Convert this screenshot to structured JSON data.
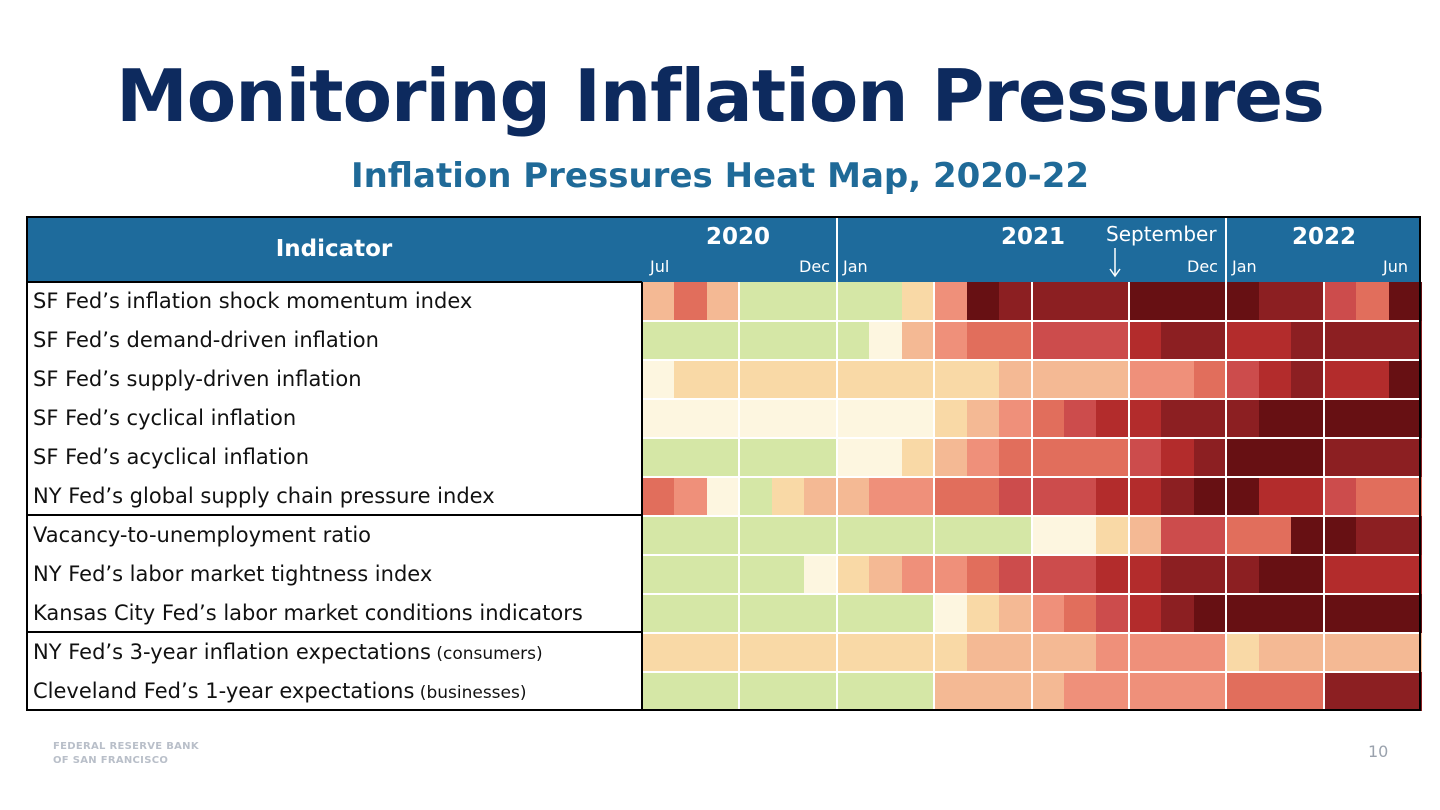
{
  "title": "Monitoring Inflation Pressures",
  "subtitle": "Inflation Pressures Heat Map, 2020-22",
  "footer": {
    "logo_line1": "FEDERAL RESERVE BANK",
    "logo_line2": "OF SAN FRANCISCO",
    "page_number": "10"
  },
  "colors": {
    "scale": [
      "#d5e7a6",
      "#fdf6e0",
      "#f9d9a6",
      "#f4b994",
      "#ef907a",
      "#e16e5c",
      "#cc4c4c",
      "#b32c2c",
      "#8c1f22",
      "#671013"
    ],
    "header_bg": "#1e6b9c",
    "title": "#0d2a5e",
    "subtitle": "#1f6a98"
  },
  "chart_data": {
    "type": "heatmap",
    "title": "Inflation Pressures Heat Map, 2020-22",
    "header": {
      "indicator_label": "Indicator",
      "years": [
        "2020",
        "2021",
        "2022"
      ],
      "month_labels": [
        "Jul",
        "Dec",
        "Jan",
        "Dec",
        "Jan",
        "Jun"
      ],
      "annotation": "September"
    },
    "x_periods": [
      "2020-07",
      "2020-08",
      "2020-09",
      "2020-10",
      "2020-11",
      "2020-12",
      "2021-01",
      "2021-02",
      "2021-03",
      "2021-04",
      "2021-05",
      "2021-06",
      "2021-07",
      "2021-08",
      "2021-09",
      "2021-10",
      "2021-11",
      "2021-12",
      "2022-01",
      "2022-02",
      "2022-03",
      "2022-04",
      "2022-05",
      "2022-06"
    ],
    "indicators": [
      {
        "label": "SF Fed’s inflation shock momentum index",
        "note": ""
      },
      {
        "label": "SF Fed’s demand-driven inflation",
        "note": ""
      },
      {
        "label": "SF Fed’s supply-driven inflation",
        "note": ""
      },
      {
        "label": "SF Fed’s cyclical inflation",
        "note": ""
      },
      {
        "label": "SF Fed’s acyclical inflation",
        "note": ""
      },
      {
        "label": "NY Fed’s global supply chain pressure index",
        "note": ""
      },
      {
        "label": "Vacancy-to-unemployment ratio",
        "note": ""
      },
      {
        "label": "NY Fed’s labor market tightness index",
        "note": ""
      },
      {
        "label": "Kansas City Fed’s labor market conditions indicators",
        "note": ""
      },
      {
        "label": "NY Fed’s 3-year inflation expectations",
        "note": "(consumers)"
      },
      {
        "label": "Cleveland Fed’s 1-year expectations",
        "note": "(businesses)"
      }
    ],
    "values": [
      [
        3,
        5,
        3,
        0,
        0,
        0,
        0,
        0,
        2,
        4,
        9,
        8,
        8,
        8,
        8,
        9,
        9,
        9,
        9,
        8,
        8,
        6,
        5,
        9
      ],
      [
        0,
        0,
        0,
        0,
        0,
        0,
        0,
        1,
        3,
        4,
        5,
        5,
        6,
        6,
        6,
        7,
        8,
        8,
        7,
        7,
        8,
        8,
        8,
        8
      ],
      [
        1,
        2,
        2,
        2,
        2,
        2,
        2,
        2,
        2,
        2,
        2,
        3,
        3,
        3,
        3,
        4,
        4,
        5,
        6,
        7,
        8,
        7,
        7,
        9
      ],
      [
        1,
        1,
        1,
        1,
        1,
        1,
        1,
        1,
        1,
        2,
        3,
        4,
        5,
        6,
        7,
        7,
        8,
        8,
        8,
        9,
        9,
        9,
        9,
        9
      ],
      [
        0,
        0,
        0,
        0,
        0,
        0,
        1,
        1,
        2,
        3,
        4,
        5,
        5,
        5,
        5,
        6,
        7,
        8,
        9,
        9,
        9,
        8,
        8,
        8
      ],
      [
        5,
        4,
        1,
        0,
        2,
        3,
        3,
        4,
        4,
        5,
        5,
        6,
        6,
        6,
        7,
        7,
        8,
        9,
        9,
        7,
        7,
        6,
        5,
        5
      ],
      [
        0,
        0,
        0,
        0,
        0,
        0,
        0,
        0,
        0,
        0,
        0,
        0,
        1,
        1,
        2,
        3,
        6,
        6,
        5,
        5,
        9,
        9,
        8,
        8
      ],
      [
        0,
        0,
        0,
        0,
        0,
        1,
        2,
        3,
        4,
        4,
        5,
        6,
        6,
        6,
        7,
        7,
        8,
        8,
        8,
        9,
        9,
        7,
        7,
        7
      ],
      [
        0,
        0,
        0,
        0,
        0,
        0,
        0,
        0,
        0,
        1,
        2,
        3,
        4,
        5,
        6,
        7,
        8,
        9,
        9,
        9,
        9,
        9,
        9,
        9
      ],
      [
        2,
        2,
        2,
        2,
        2,
        2,
        2,
        2,
        2,
        2,
        3,
        3,
        3,
        3,
        4,
        4,
        4,
        4,
        2,
        3,
        3,
        3,
        3,
        3
      ],
      [
        0,
        0,
        0,
        0,
        0,
        0,
        0,
        0,
        0,
        3,
        3,
        3,
        3,
        4,
        4,
        4,
        4,
        4,
        5,
        5,
        5,
        8,
        8,
        8
      ]
    ],
    "value_scale": "0 = low pressure (green) to 9 = high pressure (dark red)"
  }
}
